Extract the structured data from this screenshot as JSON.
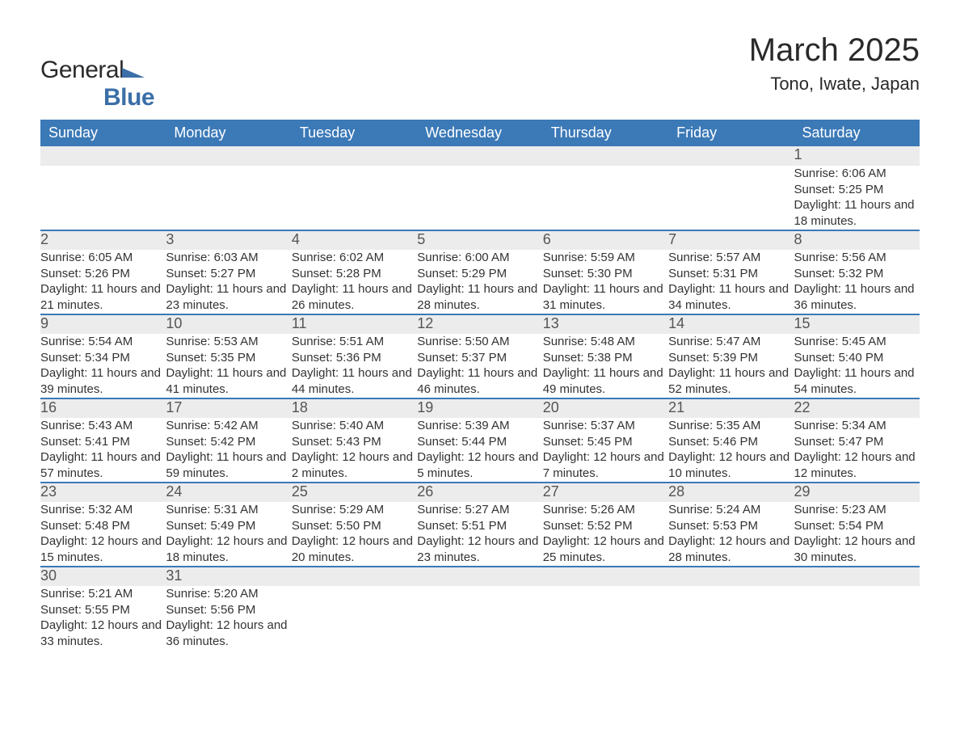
{
  "logo": {
    "text_general": "General",
    "text_blue": "Blue"
  },
  "title": "March 2025",
  "location": "Tono, Iwate, Japan",
  "colors": {
    "header_bg": "#3b79b7",
    "header_text": "#ffffff",
    "daynum_bg": "#ececec",
    "daynum_text": "#555555",
    "body_text": "#333333",
    "row_divider": "#3b79b7",
    "page_bg": "#ffffff",
    "logo_dark": "#2a2a2a",
    "logo_blue": "#3b6fa8"
  },
  "fonts": {
    "title_size_pt": 30,
    "location_size_pt": 17,
    "header_size_pt": 14,
    "daynum_size_pt": 14,
    "body_size_pt": 11
  },
  "weekdays": [
    "Sunday",
    "Monday",
    "Tuesday",
    "Wednesday",
    "Thursday",
    "Friday",
    "Saturday"
  ],
  "weeks": [
    [
      null,
      null,
      null,
      null,
      null,
      null,
      {
        "n": "1",
        "sunrise": "6:06 AM",
        "sunset": "5:25 PM",
        "daylight": "11 hours and 18 minutes."
      }
    ],
    [
      {
        "n": "2",
        "sunrise": "6:05 AM",
        "sunset": "5:26 PM",
        "daylight": "11 hours and 21 minutes."
      },
      {
        "n": "3",
        "sunrise": "6:03 AM",
        "sunset": "5:27 PM",
        "daylight": "11 hours and 23 minutes."
      },
      {
        "n": "4",
        "sunrise": "6:02 AM",
        "sunset": "5:28 PM",
        "daylight": "11 hours and 26 minutes."
      },
      {
        "n": "5",
        "sunrise": "6:00 AM",
        "sunset": "5:29 PM",
        "daylight": "11 hours and 28 minutes."
      },
      {
        "n": "6",
        "sunrise": "5:59 AM",
        "sunset": "5:30 PM",
        "daylight": "11 hours and 31 minutes."
      },
      {
        "n": "7",
        "sunrise": "5:57 AM",
        "sunset": "5:31 PM",
        "daylight": "11 hours and 34 minutes."
      },
      {
        "n": "8",
        "sunrise": "5:56 AM",
        "sunset": "5:32 PM",
        "daylight": "11 hours and 36 minutes."
      }
    ],
    [
      {
        "n": "9",
        "sunrise": "5:54 AM",
        "sunset": "5:34 PM",
        "daylight": "11 hours and 39 minutes."
      },
      {
        "n": "10",
        "sunrise": "5:53 AM",
        "sunset": "5:35 PM",
        "daylight": "11 hours and 41 minutes."
      },
      {
        "n": "11",
        "sunrise": "5:51 AM",
        "sunset": "5:36 PM",
        "daylight": "11 hours and 44 minutes."
      },
      {
        "n": "12",
        "sunrise": "5:50 AM",
        "sunset": "5:37 PM",
        "daylight": "11 hours and 46 minutes."
      },
      {
        "n": "13",
        "sunrise": "5:48 AM",
        "sunset": "5:38 PM",
        "daylight": "11 hours and 49 minutes."
      },
      {
        "n": "14",
        "sunrise": "5:47 AM",
        "sunset": "5:39 PM",
        "daylight": "11 hours and 52 minutes."
      },
      {
        "n": "15",
        "sunrise": "5:45 AM",
        "sunset": "5:40 PM",
        "daylight": "11 hours and 54 minutes."
      }
    ],
    [
      {
        "n": "16",
        "sunrise": "5:43 AM",
        "sunset": "5:41 PM",
        "daylight": "11 hours and 57 minutes."
      },
      {
        "n": "17",
        "sunrise": "5:42 AM",
        "sunset": "5:42 PM",
        "daylight": "11 hours and 59 minutes."
      },
      {
        "n": "18",
        "sunrise": "5:40 AM",
        "sunset": "5:43 PM",
        "daylight": "12 hours and 2 minutes."
      },
      {
        "n": "19",
        "sunrise": "5:39 AM",
        "sunset": "5:44 PM",
        "daylight": "12 hours and 5 minutes."
      },
      {
        "n": "20",
        "sunrise": "5:37 AM",
        "sunset": "5:45 PM",
        "daylight": "12 hours and 7 minutes."
      },
      {
        "n": "21",
        "sunrise": "5:35 AM",
        "sunset": "5:46 PM",
        "daylight": "12 hours and 10 minutes."
      },
      {
        "n": "22",
        "sunrise": "5:34 AM",
        "sunset": "5:47 PM",
        "daylight": "12 hours and 12 minutes."
      }
    ],
    [
      {
        "n": "23",
        "sunrise": "5:32 AM",
        "sunset": "5:48 PM",
        "daylight": "12 hours and 15 minutes."
      },
      {
        "n": "24",
        "sunrise": "5:31 AM",
        "sunset": "5:49 PM",
        "daylight": "12 hours and 18 minutes."
      },
      {
        "n": "25",
        "sunrise": "5:29 AM",
        "sunset": "5:50 PM",
        "daylight": "12 hours and 20 minutes."
      },
      {
        "n": "26",
        "sunrise": "5:27 AM",
        "sunset": "5:51 PM",
        "daylight": "12 hours and 23 minutes."
      },
      {
        "n": "27",
        "sunrise": "5:26 AM",
        "sunset": "5:52 PM",
        "daylight": "12 hours and 25 minutes."
      },
      {
        "n": "28",
        "sunrise": "5:24 AM",
        "sunset": "5:53 PM",
        "daylight": "12 hours and 28 minutes."
      },
      {
        "n": "29",
        "sunrise": "5:23 AM",
        "sunset": "5:54 PM",
        "daylight": "12 hours and 30 minutes."
      }
    ],
    [
      {
        "n": "30",
        "sunrise": "5:21 AM",
        "sunset": "5:55 PM",
        "daylight": "12 hours and 33 minutes."
      },
      {
        "n": "31",
        "sunrise": "5:20 AM",
        "sunset": "5:56 PM",
        "daylight": "12 hours and 36 minutes."
      },
      null,
      null,
      null,
      null,
      null
    ]
  ],
  "labels": {
    "sunrise": "Sunrise:",
    "sunset": "Sunset:",
    "daylight": "Daylight:"
  }
}
